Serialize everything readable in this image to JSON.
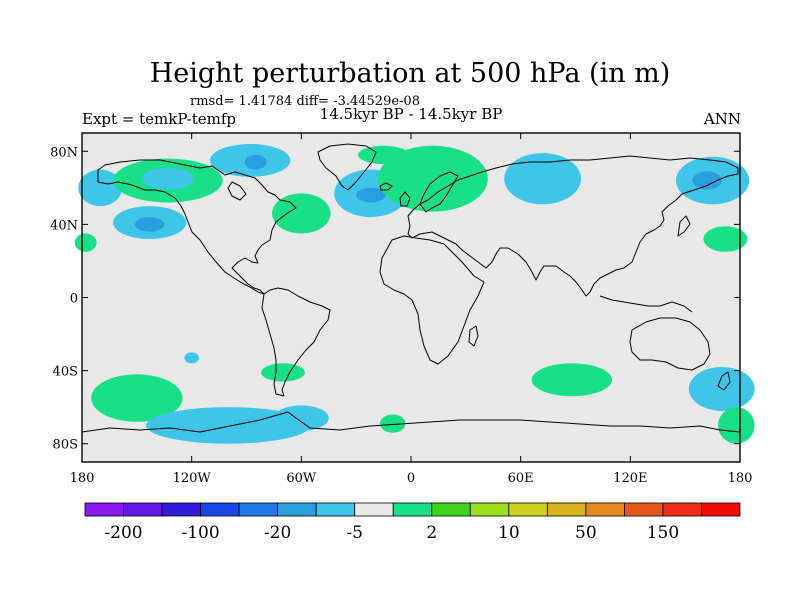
{
  "header": {
    "title": "Height perturbation at 500 hPa (in m)",
    "stats": "rmsd= 1.41784 diff= -3.44529e-08",
    "experiment": "Expt = temkP-temfp",
    "period": "14.5kyr BP - 14.5kyr BP",
    "season": "ANN"
  },
  "map": {
    "background_color": "#e8e8e8",
    "lon_range": [
      -180,
      180
    ],
    "lat_range": [
      -90,
      90
    ],
    "lat_ticks": [
      {
        "value": 80,
        "label": "80N"
      },
      {
        "value": 40,
        "label": "40N"
      },
      {
        "value": 0,
        "label": "0"
      },
      {
        "value": -40,
        "label": "40S"
      },
      {
        "value": -80,
        "label": "80S"
      }
    ],
    "lon_ticks": [
      {
        "value": -180,
        "label": "180"
      },
      {
        "value": -120,
        "label": "120W"
      },
      {
        "value": -60,
        "label": "60W"
      },
      {
        "value": 0,
        "label": "0"
      },
      {
        "value": 60,
        "label": "60E"
      },
      {
        "value": 120,
        "label": "120E"
      },
      {
        "value": 180,
        "label": "180"
      }
    ],
    "anomalies": [
      {
        "lon": -170,
        "lat": 60,
        "rlon": 12,
        "rlat": 10,
        "level": 2
      },
      {
        "lon": -178,
        "lat": 30,
        "rlon": 6,
        "rlat": 5,
        "level": 1
      },
      {
        "lon": -133,
        "lat": 64,
        "rlon": 30,
        "rlat": 12,
        "level": 1
      },
      {
        "lon": -133,
        "lat": 65,
        "rlon": 14,
        "rlat": 6,
        "level": 2
      },
      {
        "lon": -143,
        "lat": 41,
        "rlon": 20,
        "rlat": 9,
        "level": 2
      },
      {
        "lon": -143,
        "lat": 40,
        "rlon": 8,
        "rlat": 4,
        "level": 3
      },
      {
        "lon": -88,
        "lat": 75,
        "rlon": 22,
        "rlat": 9,
        "level": 2
      },
      {
        "lon": -85,
        "lat": 74,
        "rlon": 6,
        "rlat": 4,
        "level": 3
      },
      {
        "lon": -60,
        "lat": 46,
        "rlon": 16,
        "rlat": 11,
        "level": 1
      },
      {
        "lon": -22,
        "lat": 57,
        "rlon": 20,
        "rlat": 13,
        "level": 2
      },
      {
        "lon": -22,
        "lat": 56,
        "rlon": 8,
        "rlat": 4,
        "level": 3
      },
      {
        "lon": 12,
        "lat": 65,
        "rlon": 30,
        "rlat": 18,
        "level": 1
      },
      {
        "lon": -15,
        "lat": 78,
        "rlon": 14,
        "rlat": 5,
        "level": 1
      },
      {
        "lon": 72,
        "lat": 65,
        "rlon": 21,
        "rlat": 14,
        "level": 2
      },
      {
        "lon": 165,
        "lat": 64,
        "rlon": 20,
        "rlat": 13,
        "level": 2
      },
      {
        "lon": 162,
        "lat": 64,
        "rlon": 8,
        "rlat": 5,
        "level": 3
      },
      {
        "lon": 172,
        "lat": 32,
        "rlon": 12,
        "rlat": 7,
        "level": 1
      },
      {
        "lon": -150,
        "lat": -55,
        "rlon": 25,
        "rlat": 13,
        "level": 1
      },
      {
        "lon": -120,
        "lat": -33,
        "rlon": 4,
        "rlat": 3,
        "level": 2
      },
      {
        "lon": -70,
        "lat": -41,
        "rlon": 12,
        "rlat": 5,
        "level": 1
      },
      {
        "lon": -100,
        "lat": -70,
        "rlon": 45,
        "rlat": 10,
        "level": 2
      },
      {
        "lon": -60,
        "lat": -66,
        "rlon": 15,
        "rlat": 7,
        "level": 2
      },
      {
        "lon": -10,
        "lat": -69,
        "rlon": 7,
        "rlat": 5,
        "level": 1
      },
      {
        "lon": 88,
        "lat": -45,
        "rlon": 22,
        "rlat": 9,
        "level": 1
      },
      {
        "lon": 170,
        "lat": -50,
        "rlon": 18,
        "rlat": 12,
        "level": 2
      },
      {
        "lon": 178,
        "lat": -70,
        "rlon": 10,
        "rlat": 10,
        "level": 1
      }
    ]
  },
  "colorbar": {
    "colors": [
      "#8a19f2",
      "#6419e6",
      "#3319d9",
      "#1946e6",
      "#1f7ae8",
      "#2a9fe0",
      "#3ec5e8",
      "#e8e8e8",
      "#19e088",
      "#3fd21c",
      "#9be01c",
      "#cfd21c",
      "#d9b21c",
      "#e6891c",
      "#e6571c",
      "#ee2c1c",
      "#f20a0a"
    ],
    "labels": [
      {
        "value": "-200",
        "index": 1
      },
      {
        "value": "-100",
        "index": 3
      },
      {
        "value": "-20",
        "index": 5
      },
      {
        "value": "-5",
        "index": 7
      },
      {
        "value": "2",
        "index": 9
      },
      {
        "value": "10",
        "index": 11
      },
      {
        "value": "50",
        "index": 13
      },
      {
        "value": "150",
        "index": 15
      }
    ]
  }
}
